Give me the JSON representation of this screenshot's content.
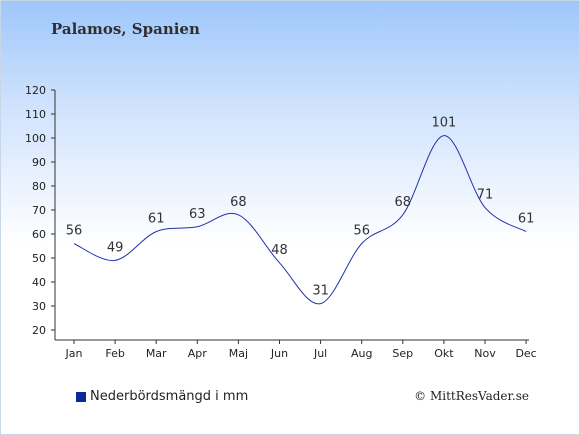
{
  "chart_data": {
    "type": "line",
    "title": "Palamos, Spanien",
    "categories": [
      "Jan",
      "Feb",
      "Mar",
      "Apr",
      "Maj",
      "Jun",
      "Jul",
      "Aug",
      "Sep",
      "Okt",
      "Nov",
      "Dec"
    ],
    "series": [
      {
        "name": "Nederbördsmängd i mm",
        "values": [
          56,
          49,
          61,
          63,
          68,
          48,
          31,
          56,
          68,
          101,
          71,
          61
        ],
        "color": "#2233aa"
      }
    ],
    "ylim": [
      20,
      120
    ],
    "yticks": [
      20,
      30,
      40,
      50,
      60,
      70,
      80,
      90,
      100,
      110,
      120
    ],
    "data_labels": true,
    "grid": false,
    "legend_position": "bottom-left",
    "legend_swatch_color": "#0a2a9a"
  },
  "copyright": "© MittResVader.se"
}
